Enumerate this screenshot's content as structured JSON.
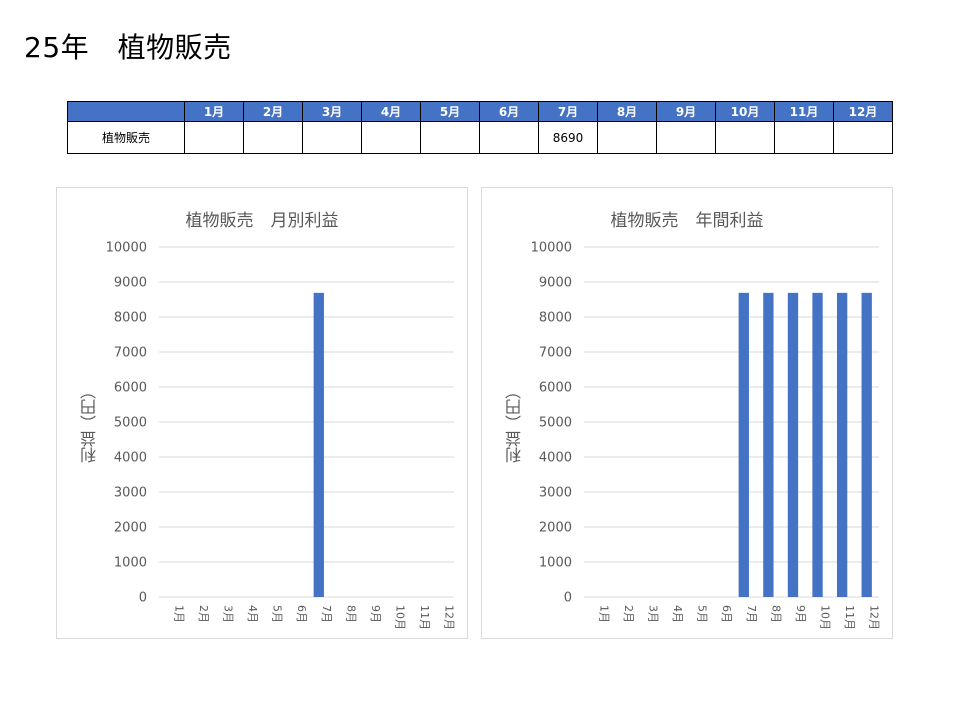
{
  "page": {
    "title": "25年　植物販売"
  },
  "table": {
    "headers": [
      "",
      "1月",
      "2月",
      "3月",
      "4月",
      "5月",
      "6月",
      "7月",
      "8月",
      "9月",
      "10月",
      "11月",
      "12月"
    ],
    "rows": [
      {
        "label": "植物販売",
        "cells": [
          "",
          "",
          "",
          "",
          "",
          "",
          "8690",
          "",
          "",
          "",
          "",
          ""
        ]
      }
    ]
  },
  "colors": {
    "accent": "#4472c4",
    "grid": "#d9d9d9",
    "axis_text": "#595959"
  },
  "chart_data": [
    {
      "type": "bar",
      "title": "植物販売　月別利益",
      "xlabel": "",
      "ylabel": "利益（円）",
      "categories": [
        "1月",
        "2月",
        "3月",
        "4月",
        "5月",
        "6月",
        "7月",
        "8月",
        "9月",
        "10月",
        "11月",
        "12月"
      ],
      "values": [
        0,
        0,
        0,
        0,
        0,
        0,
        8690,
        0,
        0,
        0,
        0,
        0
      ],
      "ylim": [
        0,
        10000
      ],
      "yticks": [
        "0",
        "1000",
        "2000",
        "3000",
        "4000",
        "5000",
        "6000",
        "7000",
        "8000",
        "9000",
        "10000"
      ],
      "grid": true,
      "legend": "none"
    },
    {
      "type": "bar",
      "title": "植物販売　年間利益",
      "xlabel": "",
      "ylabel": "利益（円）",
      "categories": [
        "1月",
        "2月",
        "3月",
        "4月",
        "5月",
        "6月",
        "7月",
        "8月",
        "9月",
        "10月",
        "11月",
        "12月"
      ],
      "values": [
        0,
        0,
        0,
        0,
        0,
        0,
        8690,
        8690,
        8690,
        8690,
        8690,
        8690
      ],
      "ylim": [
        0,
        10000
      ],
      "yticks": [
        "0",
        "1000",
        "2000",
        "3000",
        "4000",
        "5000",
        "6000",
        "7000",
        "8000",
        "9000",
        "10000"
      ],
      "grid": true,
      "legend": "none"
    }
  ]
}
